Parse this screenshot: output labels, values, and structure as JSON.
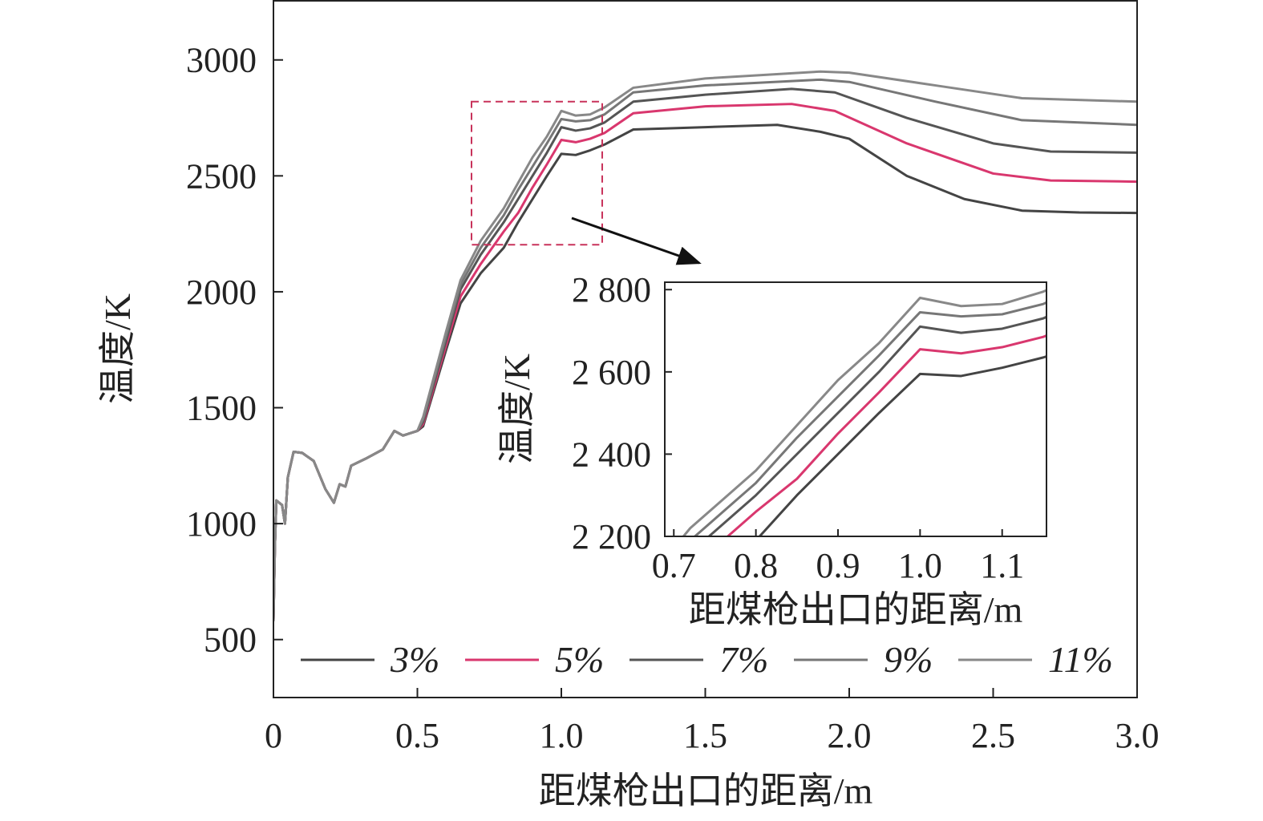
{
  "chart_data": [
    {
      "type": "line",
      "xlabel": "距煤枪出口的距离/m",
      "ylabel": "温度/K",
      "xlim": [
        0,
        3.0
      ],
      "ylim": [
        250,
        3255
      ],
      "xticks": [
        "0",
        "0.5",
        "1.0",
        "1.5",
        "2.0",
        "2.5",
        "3.0"
      ],
      "xtick_values": [
        0,
        0.5,
        1.0,
        1.5,
        2.0,
        2.5,
        3.0
      ],
      "yticks": [
        "500",
        "1000",
        "1500",
        "2000",
        "2500",
        "3000"
      ],
      "ytick_values": [
        500,
        1000,
        1500,
        2000,
        2500,
        3000
      ],
      "legend_placement": "bottom",
      "common_start": [
        [
          0,
          580
        ],
        [
          0.005,
          900
        ],
        [
          0.01,
          1100
        ],
        [
          0.03,
          1080
        ],
        [
          0.04,
          1000
        ],
        [
          0.05,
          1200
        ],
        [
          0.07,
          1310
        ],
        [
          0.1,
          1305
        ],
        [
          0.14,
          1270
        ],
        [
          0.18,
          1150
        ],
        [
          0.21,
          1090
        ],
        [
          0.23,
          1170
        ],
        [
          0.25,
          1160
        ],
        [
          0.27,
          1250
        ],
        [
          0.32,
          1280
        ],
        [
          0.38,
          1320
        ],
        [
          0.42,
          1400
        ],
        [
          0.45,
          1380
        ],
        [
          0.5,
          1400
        ]
      ],
      "series": [
        {
          "name": "3%",
          "color": "#444444",
          "points": [
            [
              0.52,
              1420
            ],
            [
              0.6,
              1750
            ],
            [
              0.65,
              1950
            ],
            [
              0.72,
              2080
            ],
            [
              0.8,
              2190
            ],
            [
              0.85,
              2300
            ],
            [
              0.9,
              2400
            ],
            [
              0.95,
              2500
            ],
            [
              1.0,
              2595
            ],
            [
              1.05,
              2590
            ],
            [
              1.1,
              2610
            ],
            [
              1.15,
              2635
            ],
            [
              1.25,
              2700
            ],
            [
              1.5,
              2710
            ],
            [
              1.75,
              2720
            ],
            [
              1.9,
              2690
            ],
            [
              2.0,
              2660
            ],
            [
              2.2,
              2500
            ],
            [
              2.4,
              2400
            ],
            [
              2.6,
              2350
            ],
            [
              2.8,
              2342
            ],
            [
              3.0,
              2340
            ]
          ]
        },
        {
          "name": "5%",
          "color": "#d9376e",
          "points": [
            [
              0.52,
              1430
            ],
            [
              0.6,
              1770
            ],
            [
              0.65,
              1980
            ],
            [
              0.72,
              2120
            ],
            [
              0.8,
              2260
            ],
            [
              0.85,
              2340
            ],
            [
              0.9,
              2450
            ],
            [
              0.95,
              2550
            ],
            [
              1.0,
              2655
            ],
            [
              1.05,
              2645
            ],
            [
              1.1,
              2660
            ],
            [
              1.15,
              2685
            ],
            [
              1.25,
              2770
            ],
            [
              1.5,
              2800
            ],
            [
              1.8,
              2810
            ],
            [
              1.95,
              2780
            ],
            [
              2.2,
              2640
            ],
            [
              2.5,
              2510
            ],
            [
              2.7,
              2480
            ],
            [
              3.0,
              2475
            ]
          ]
        },
        {
          "name": "7%",
          "color": "#555555",
          "points": [
            [
              0.52,
              1440
            ],
            [
              0.6,
              1790
            ],
            [
              0.65,
              2010
            ],
            [
              0.72,
              2160
            ],
            [
              0.8,
              2300
            ],
            [
              0.85,
              2400
            ],
            [
              0.9,
              2500
            ],
            [
              0.95,
              2600
            ],
            [
              1.0,
              2710
            ],
            [
              1.05,
              2695
            ],
            [
              1.1,
              2705
            ],
            [
              1.15,
              2730
            ],
            [
              1.25,
              2820
            ],
            [
              1.5,
              2850
            ],
            [
              1.8,
              2875
            ],
            [
              1.95,
              2860
            ],
            [
              2.2,
              2750
            ],
            [
              2.5,
              2640
            ],
            [
              2.7,
              2605
            ],
            [
              3.0,
              2600
            ]
          ]
        },
        {
          "name": "9%",
          "color": "#777777",
          "points": [
            [
              0.52,
              1450
            ],
            [
              0.6,
              1810
            ],
            [
              0.65,
              2030
            ],
            [
              0.72,
              2190
            ],
            [
              0.8,
              2330
            ],
            [
              0.85,
              2440
            ],
            [
              0.9,
              2540
            ],
            [
              0.95,
              2640
            ],
            [
              1.0,
              2745
            ],
            [
              1.05,
              2735
            ],
            [
              1.1,
              2740
            ],
            [
              1.15,
              2765
            ],
            [
              1.25,
              2860
            ],
            [
              1.5,
              2890
            ],
            [
              1.9,
              2915
            ],
            [
              2.0,
              2905
            ],
            [
              2.3,
              2820
            ],
            [
              2.6,
              2740
            ],
            [
              3.0,
              2720
            ]
          ]
        },
        {
          "name": "11%",
          "color": "#888888",
          "points": [
            [
              0.52,
              1460
            ],
            [
              0.6,
              1830
            ],
            [
              0.65,
              2050
            ],
            [
              0.72,
              2220
            ],
            [
              0.8,
              2360
            ],
            [
              0.85,
              2470
            ],
            [
              0.9,
              2580
            ],
            [
              0.95,
              2670
            ],
            [
              1.0,
              2780
            ],
            [
              1.05,
              2760
            ],
            [
              1.1,
              2765
            ],
            [
              1.15,
              2795
            ],
            [
              1.25,
              2880
            ],
            [
              1.5,
              2920
            ],
            [
              1.9,
              2950
            ],
            [
              2.0,
              2945
            ],
            [
              2.3,
              2890
            ],
            [
              2.6,
              2835
            ],
            [
              3.0,
              2820
            ]
          ]
        }
      ],
      "zoom_box": {
        "x": [
          0.688,
          1.142
        ],
        "y": [
          2203,
          2820
        ],
        "color": "#c8325a"
      }
    },
    {
      "type": "line",
      "role": "inset",
      "xlabel": "距煤枪出口的距离/m",
      "ylabel": "温度/K",
      "xlim": [
        0.689,
        1.154
      ],
      "ylim": [
        2200,
        2818
      ],
      "xticks": [
        "0.7",
        "0.8",
        "0.9",
        "1.0",
        "1.1"
      ],
      "xtick_values": [
        0.7,
        0.8,
        0.9,
        1.0,
        1.1
      ],
      "yticks": [
        "2 200",
        "2 400",
        "2 600",
        "2 800"
      ],
      "ytick_values": [
        2200,
        2400,
        2600,
        2800
      ]
    }
  ]
}
